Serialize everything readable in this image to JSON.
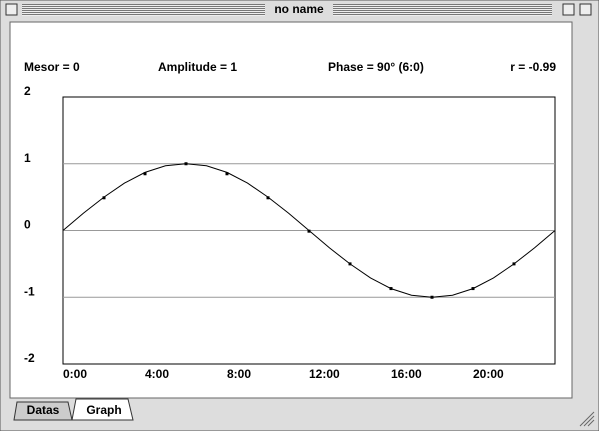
{
  "window": {
    "title": "no name"
  },
  "stats": [
    "Mesor = 0",
    "Amplitude = 1",
    "Phase = 90° (6:0)",
    "r = -0.99"
  ],
  "tabs": [
    "Datas",
    "Graph"
  ],
  "chart_data": {
    "type": "line",
    "xlim": [
      0,
      24
    ],
    "ylim": [
      -2,
      2
    ],
    "xticks": [
      {
        "value": 0,
        "label": "0:00"
      },
      {
        "value": 4,
        "label": "4:00"
      },
      {
        "value": 8,
        "label": "8:00"
      },
      {
        "value": 12,
        "label": "12:00"
      },
      {
        "value": 16,
        "label": "16:00"
      },
      {
        "value": 20,
        "label": "20:00"
      }
    ],
    "yticks": [
      -2,
      -1,
      0,
      1,
      2
    ],
    "grid": true,
    "color": "#000000",
    "curve": {
      "x": [
        0,
        1,
        2,
        3,
        4,
        5,
        6,
        7,
        8,
        9,
        10,
        11,
        12,
        13,
        14,
        15,
        16,
        17,
        18,
        19,
        20,
        21,
        22,
        23,
        24
      ],
      "values": [
        0,
        0.26,
        0.5,
        0.71,
        0.87,
        0.97,
        1,
        0.97,
        0.87,
        0.71,
        0.5,
        0.26,
        0,
        -0.26,
        -0.5,
        -0.71,
        -0.87,
        -0.97,
        -1,
        -0.97,
        -0.87,
        -0.71,
        -0.5,
        -0.26,
        0
      ]
    },
    "points": {
      "x": [
        2,
        4,
        6,
        8,
        10,
        12,
        14,
        16,
        18,
        20,
        22
      ],
      "values": [
        0.49,
        0.85,
        1,
        0.85,
        0.49,
        -0.01,
        -0.5,
        -0.87,
        -1,
        -0.87,
        -0.5
      ]
    }
  }
}
